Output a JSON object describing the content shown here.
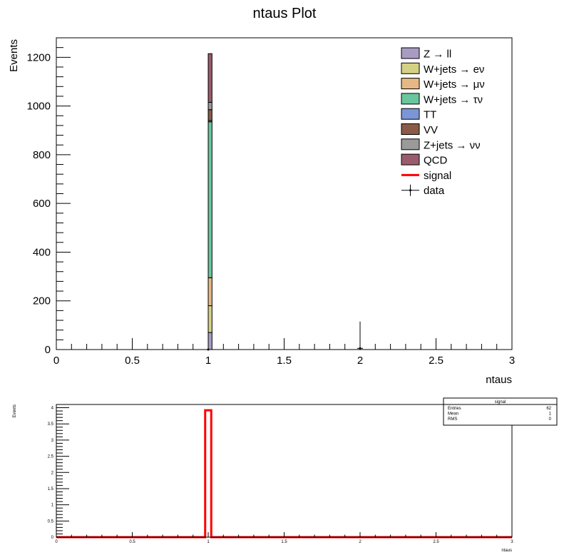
{
  "chart_data": [
    {
      "type": "bar",
      "title": "ntaus Plot",
      "xlabel": "ntaus",
      "ylabel": "Events",
      "xlim": [
        0,
        3
      ],
      "ylim": [
        0,
        1280
      ],
      "x_ticks": [
        0,
        0.5,
        1,
        1.5,
        2,
        2.5,
        3
      ],
      "x_tick_labels": [
        "0",
        "0.5",
        "1",
        "1.5",
        "2",
        "2.5",
        "3"
      ],
      "y_ticks": [
        0,
        200,
        400,
        600,
        800,
        1000,
        1200
      ],
      "y_tick_labels": [
        "0",
        "200",
        "400",
        "600",
        "800",
        "1000",
        "1200"
      ],
      "stacked": true,
      "bin": [
        1.0,
        1.025
      ],
      "series": [
        {
          "name": "Z → ll",
          "color": "#a99cc2",
          "value": 70
        },
        {
          "name": "W+jets → eν",
          "color": "#d4d184",
          "value": 110
        },
        {
          "name": "W+jets → μν",
          "color": "#e5b985",
          "value": 115
        },
        {
          "name": "W+jets → τν",
          "color": "#6ac69d",
          "value": 640
        },
        {
          "name": "TT",
          "color": "#7b95d6",
          "value": 5
        },
        {
          "name": "VV",
          "color": "#8a5c48",
          "value": 45
        },
        {
          "name": "Z+jets → νν",
          "color": "#9a9a9a",
          "value": 30
        },
        {
          "name": "QCD",
          "color": "#9a5c6c",
          "value": 200
        }
      ],
      "signal": {
        "name": "signal",
        "color": "#ff0000"
      },
      "data": {
        "name": "data",
        "points": [
          {
            "x": 1,
            "y": 0
          },
          {
            "x": 2,
            "y": 5
          }
        ]
      },
      "legend_position": "top-right",
      "grid": false
    },
    {
      "type": "bar",
      "xlabel": "ntaus",
      "ylabel": "Events",
      "xlim": [
        0,
        3
      ],
      "ylim": [
        0,
        4.1
      ],
      "x_ticks": [
        0,
        0.5,
        1,
        1.5,
        2,
        2.5,
        3
      ],
      "x_tick_labels": [
        "0",
        "0.5",
        "1",
        "1.5",
        "2",
        "2.5",
        "3"
      ],
      "y_ticks": [
        0,
        0.5,
        1,
        1.5,
        2,
        2.5,
        3,
        3.5,
        4
      ],
      "y_tick_labels": [
        "0",
        "0.5",
        "1",
        "1.5",
        "2",
        "2.5",
        "3",
        "3.5",
        "4"
      ],
      "series": [
        {
          "name": "signal",
          "color": "#ff0000",
          "bin": [
            0.98,
            1.02
          ],
          "value": 3.92
        }
      ],
      "stats_box": {
        "title": "signal",
        "rows": [
          {
            "label": "Entries",
            "value": "62"
          },
          {
            "label": "Mean",
            "value": "1"
          },
          {
            "label": "RMS",
            "value": "0"
          }
        ]
      },
      "grid": false
    }
  ]
}
